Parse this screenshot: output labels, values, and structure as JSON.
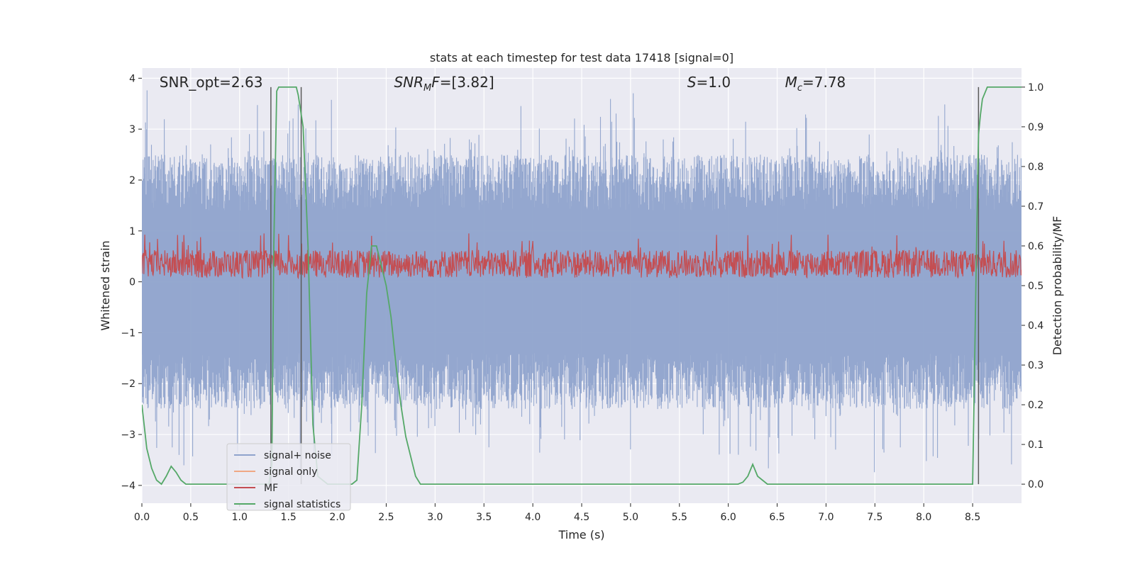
{
  "chart_data": {
    "type": "line",
    "title": "stats at each timestep for test data 17418 [signal=0]",
    "xlabel": "Time (s)",
    "ylabel": "Whitened strain",
    "y2label": "Detection probability/MF",
    "xlim": [
      0.0,
      9.0
    ],
    "ylim": [
      -4.35,
      4.2
    ],
    "y2lim": [
      -0.048,
      1.048
    ],
    "x_ticks": [
      "0.0",
      "0.5",
      "1.0",
      "1.5",
      "2.0",
      "2.5",
      "3.0",
      "3.5",
      "4.0",
      "4.5",
      "5.0",
      "5.5",
      "6.0",
      "6.5",
      "7.0",
      "7.5",
      "8.0",
      "8.5"
    ],
    "y_ticks": [
      "4",
      "3",
      "2",
      "1",
      "0",
      "−1",
      "−2",
      "−3",
      "−4"
    ],
    "y2_ticks": [
      "1.0",
      "0.9",
      "0.8",
      "0.7",
      "0.6",
      "0.5",
      "0.4",
      "0.3",
      "0.2",
      "0.1",
      "0.0"
    ],
    "grid": true,
    "legend_position": "lower-left",
    "annotations": [
      {
        "name": "snr-opt",
        "text": "SNR_opt=2.63",
        "x": 0.18
      },
      {
        "name": "snr-mf",
        "text": "SNR_MF=[3.82]",
        "x": 2.58
      },
      {
        "name": "s-value",
        "text": "S=1.0",
        "x": 5.58
      },
      {
        "name": "mc-value",
        "text": "M_c=7.78",
        "x": 6.58
      }
    ],
    "vertical_lines_x": [
      1.32,
      1.63,
      8.56
    ],
    "series": [
      {
        "name": "signal+ noise",
        "color": "#8fa3cc",
        "axis": "left",
        "style": "dense noise, amplitude ~±2.5 with spikes to ~±3.8"
      },
      {
        "name": "signal only",
        "color": "#f0a884",
        "axis": "left",
        "values": []
      },
      {
        "name": "MF",
        "color": "#c44e52",
        "axis": "left",
        "style": "dense band between ~0.0 and ~0.9"
      },
      {
        "name": "signal statistics",
        "color": "#55a868",
        "axis": "right",
        "x": [
          0.0,
          0.05,
          0.1,
          0.15,
          0.2,
          0.25,
          0.3,
          0.35,
          0.4,
          0.45,
          0.5,
          1.3,
          1.33,
          1.35,
          1.38,
          1.4,
          1.45,
          1.5,
          1.55,
          1.58,
          1.6,
          1.65,
          1.7,
          1.75,
          1.8,
          1.85,
          1.9,
          1.95,
          2.0,
          2.05,
          2.1,
          2.15,
          2.2,
          2.25,
          2.3,
          2.35,
          2.4,
          2.45,
          2.5,
          2.55,
          2.6,
          2.65,
          2.7,
          2.75,
          2.8,
          2.85,
          3.0,
          6.1,
          6.15,
          6.2,
          6.25,
          6.3,
          6.35,
          6.4,
          8.5,
          8.52,
          8.54,
          8.56,
          8.58,
          8.6,
          8.65,
          8.7,
          9.0
        ],
        "values": [
          0.2,
          0.09,
          0.04,
          0.01,
          0.0,
          0.02,
          0.045,
          0.03,
          0.01,
          0.0,
          0.0,
          0.0,
          0.05,
          0.6,
          0.99,
          1.0,
          1.0,
          1.0,
          1.0,
          1.0,
          0.98,
          0.9,
          0.6,
          0.15,
          0.02,
          0.01,
          0.0,
          0.0,
          0.0,
          0.0,
          0.0,
          0.0,
          0.01,
          0.2,
          0.48,
          0.6,
          0.6,
          0.55,
          0.5,
          0.42,
          0.3,
          0.2,
          0.12,
          0.07,
          0.02,
          0.0,
          0.0,
          0.0,
          0.005,
          0.02,
          0.05,
          0.02,
          0.01,
          0.0,
          0.0,
          0.3,
          0.6,
          0.88,
          0.93,
          0.97,
          1.0,
          1.0,
          1.0
        ]
      }
    ]
  }
}
